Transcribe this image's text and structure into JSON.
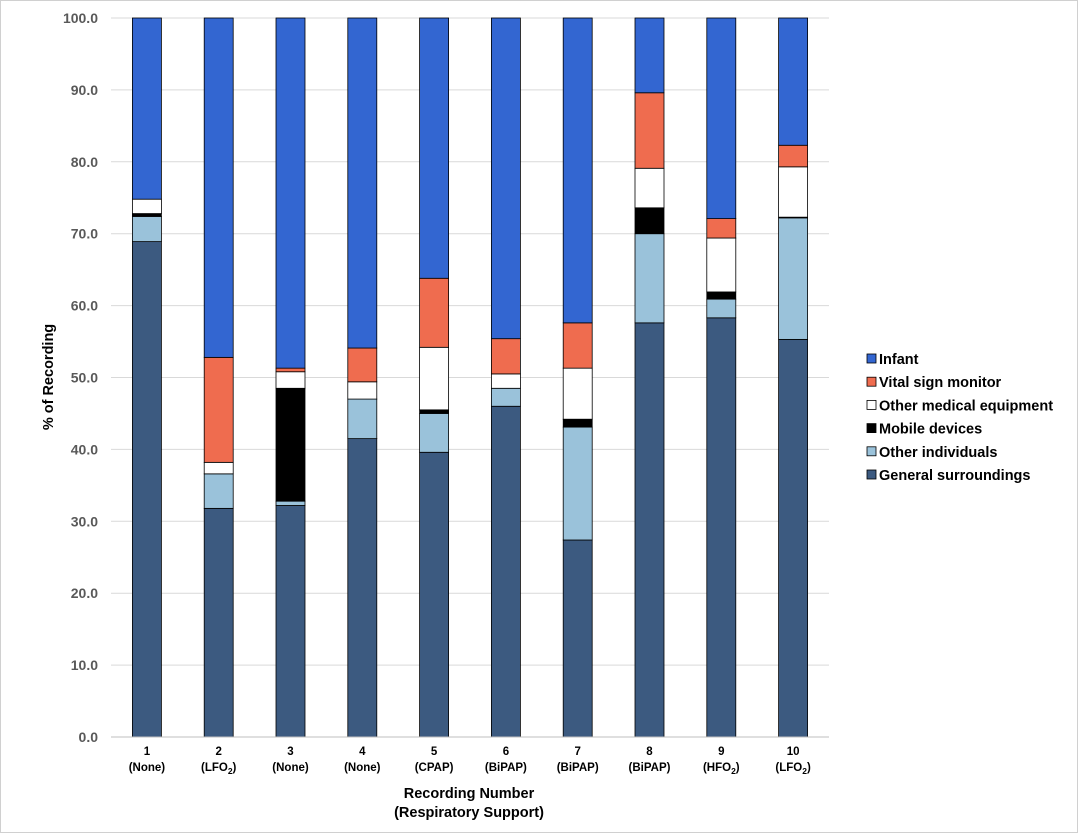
{
  "chart_data": {
    "type": "bar",
    "stacked": true,
    "title": "",
    "xlabel": "Recording Number",
    "xlabel_line2": "(Respiratory Support)",
    "ylabel": "% of Recording",
    "ylim": [
      0,
      100
    ],
    "y_ticks": [
      "0.0",
      "10.0",
      "20.0",
      "30.0",
      "40.0",
      "50.0",
      "60.0",
      "70.0",
      "80.0",
      "90.0",
      "100.0"
    ],
    "grid": true,
    "legend_position": "right",
    "categories": [
      "1",
      "2",
      "3",
      "4",
      "5",
      "6",
      "7",
      "8",
      "9",
      "10"
    ],
    "category_support": [
      {
        "pre": "(None)"
      },
      {
        "pre": "(LFO",
        "sub": "2",
        "post": ")"
      },
      {
        "pre": "(None)"
      },
      {
        "pre": "(None)"
      },
      {
        "pre": "(CPAP)"
      },
      {
        "pre": "(BiPAP)"
      },
      {
        "pre": "(BiPAP)"
      },
      {
        "pre": "(BiPAP)"
      },
      {
        "pre": "(HFO",
        "sub": "2",
        "post": ")"
      },
      {
        "pre": "(LFO",
        "sub": "2",
        "post": ")"
      }
    ],
    "series": [
      {
        "name": "General surroundings",
        "color": "#3c5a80",
        "values": [
          68.9,
          31.8,
          32.2,
          41.5,
          39.6,
          46.0,
          27.4,
          57.6,
          58.3,
          55.3
        ]
      },
      {
        "name": "Other individuals",
        "color": "#9ac2da",
        "values": [
          3.5,
          4.8,
          0.6,
          5.5,
          5.4,
          2.5,
          15.7,
          12.4,
          2.6,
          16.9
        ]
      },
      {
        "name": "Mobile devices",
        "color": "#000000",
        "values": [
          0.4,
          0.0,
          15.7,
          0.0,
          0.5,
          0.0,
          1.1,
          3.6,
          1.0,
          0.1
        ]
      },
      {
        "name": "Other medical equipment",
        "color": "#ffffff",
        "values": [
          2.0,
          1.6,
          2.3,
          2.4,
          8.7,
          2.0,
          7.1,
          5.5,
          7.5,
          7.0
        ]
      },
      {
        "name": "Vital sign monitor",
        "color": "#ef6c4f",
        "values": [
          0.0,
          14.6,
          0.5,
          4.7,
          9.6,
          4.9,
          6.3,
          10.5,
          2.7,
          3.0
        ]
      },
      {
        "name": "Infant",
        "color": "#3366d1",
        "values": [
          25.2,
          47.2,
          48.7,
          45.9,
          36.2,
          44.6,
          42.4,
          10.4,
          27.9,
          17.7
        ]
      }
    ],
    "legend_order": [
      "Infant",
      "Vital sign monitor",
      "Other medical equipment",
      "Mobile devices",
      "Other individuals",
      "General surroundings"
    ]
  }
}
